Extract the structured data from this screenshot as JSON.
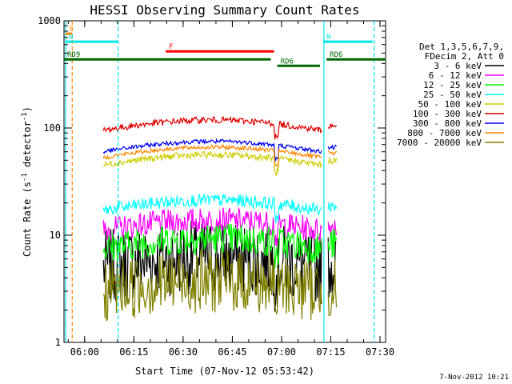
{
  "chart_data": {
    "type": "line",
    "title": "HESSI Observing Summary Count Rates",
    "xlabel": "Start Time (07-Nov-12 05:53:42)",
    "ylabel_main": "Count Rate (s",
    "ylabel_sup1": "-1",
    "ylabel_mid": " detector",
    "ylabel_sup2": "-1",
    "ylabel_end": ")",
    "y_scale": "log",
    "ylim": [
      1,
      1000
    ],
    "xlim_minutes": [
      0,
      98
    ],
    "x_ticks": [
      {
        "label": "06:00",
        "min": 6.3
      },
      {
        "label": "06:15",
        "min": 21.3
      },
      {
        "label": "06:30",
        "min": 36.3
      },
      {
        "label": "06:45",
        "min": 51.3
      },
      {
        "label": "07:00",
        "min": 66.3
      },
      {
        "label": "07:15",
        "min": 81.3
      },
      {
        "label": "07:30",
        "min": 96.3
      }
    ],
    "y_ticks": [
      {
        "label": "1",
        "value": 1
      },
      {
        "label": "10",
        "value": 10
      },
      {
        "label": "100",
        "value": 100
      },
      {
        "label": "1000",
        "value": 1000
      }
    ],
    "legend_header": [
      "Det 1,3,5,6,7,9,",
      "FDecim 2, Att 0"
    ],
    "series": [
      {
        "name": "3 - 6 keV",
        "color": "#000000",
        "base": 5,
        "noise": 0.35
      },
      {
        "name": "6 - 12 keV",
        "color": "#ff00ff",
        "base": 11,
        "noise": 0.12
      },
      {
        "name": "12 - 25 keV",
        "color": "#00ff00",
        "base": 7.5,
        "noise": 0.15
      },
      {
        "name": "25 - 50 keV",
        "color": "#00ffff",
        "base": 17,
        "noise": 0.06
      },
      {
        "name": "50 - 100 keV",
        "color": "#cccc00",
        "base": 45,
        "noise": 0.03
      },
      {
        "name": "100 - 300 keV",
        "color": "#dd0000",
        "base": 95,
        "noise": 0.03
      },
      {
        "name": "300 - 800 keV",
        "color": "#0000ee",
        "base": 60,
        "noise": 0.02
      },
      {
        "name": "800 - 7000 keV",
        "color": "#ff8800",
        "base": 53,
        "noise": 0.02
      },
      {
        "name": "7000 - 20000 keV",
        "color": "#808000",
        "base": 3,
        "noise": 0.3
      }
    ],
    "flag_bars": [
      {
        "label": "S",
        "color": "#ff8800",
        "start": 0.5,
        "end": 2.5,
        "y_frac": 0.04
      },
      {
        "label": "N",
        "color": "#00e5e5",
        "start": 0.5,
        "end": 16.5,
        "y_frac": 0.065
      },
      {
        "label": "N",
        "color": "#00e5e5",
        "start": 79,
        "end": 94,
        "y_frac": 0.065
      },
      {
        "label": "F",
        "color": "#ff0000",
        "start": 31,
        "end": 64,
        "y_frac": 0.095
      },
      {
        "label": "RD9",
        "color": "#006600",
        "start": 0,
        "end": 63,
        "y_frac": 0.12
      },
      {
        "label": "RD6",
        "color": "#006600",
        "start": 65,
        "end": 78,
        "y_frac": 0.14
      },
      {
        "label": "RD6",
        "color": "#006600",
        "start": 80,
        "end": 98,
        "y_frac": 0.12
      }
    ],
    "vlines": [
      {
        "min": 0.5,
        "color": "#00e5e5",
        "style": "solid"
      },
      {
        "min": 2.5,
        "color": "#ff8800",
        "style": "dashed"
      },
      {
        "min": 16.5,
        "color": "#00e5e5",
        "style": "dashed"
      },
      {
        "min": 79.2,
        "color": "#00e5e5",
        "style": "solid"
      },
      {
        "min": 94.5,
        "color": "#00e5e5",
        "style": "dashed"
      }
    ],
    "footer_date": "7-Nov-2012 10:21"
  }
}
